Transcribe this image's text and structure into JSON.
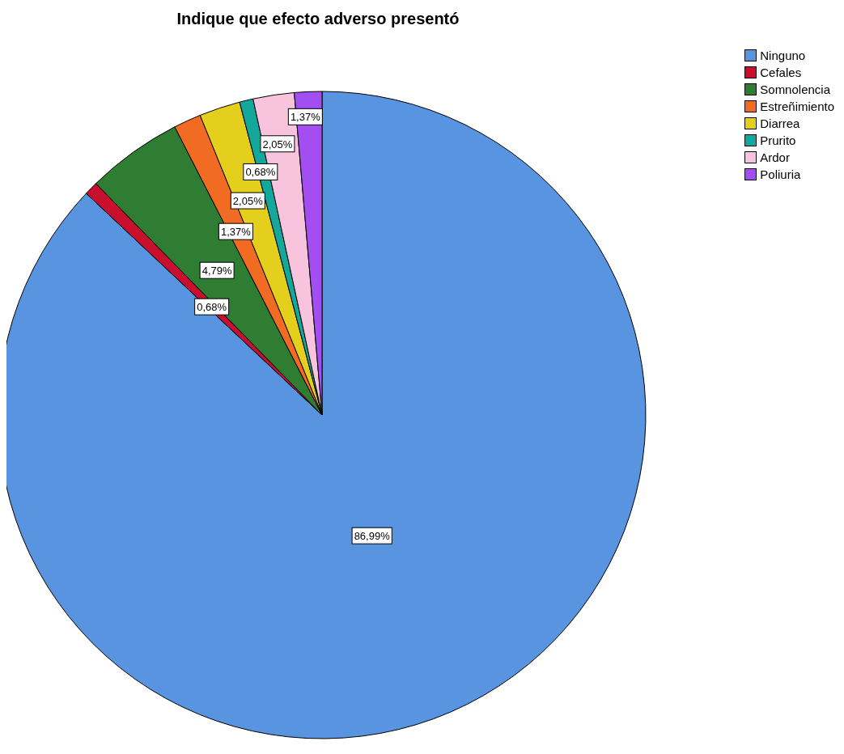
{
  "chart_data": {
    "type": "pie",
    "title": "Indique que efecto adverso presentó",
    "categories": [
      "Ninguno",
      "Cefales",
      "Somnolencia",
      "Estreñimiento",
      "Diarrea",
      "Prurito",
      "Ardor",
      "Poliuria"
    ],
    "values": [
      86.99,
      0.68,
      4.79,
      1.37,
      2.05,
      0.68,
      2.05,
      1.37
    ],
    "value_labels": [
      "86,99%",
      "0,68%",
      "4,79%",
      "1,37%",
      "2,05%",
      "0,68%",
      "2,05%",
      "1,37%"
    ],
    "colors": [
      "#5894e0",
      "#c8102e",
      "#2e7d32",
      "#f26b22",
      "#e3cf1c",
      "#14a89c",
      "#f8c4dd",
      "#a24ef0"
    ],
    "legend": "top right"
  }
}
